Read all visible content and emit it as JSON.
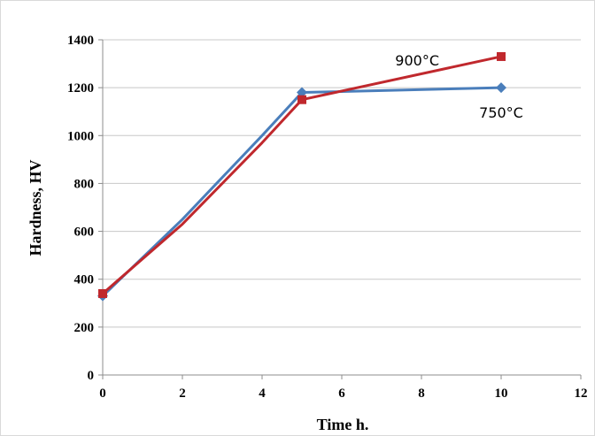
{
  "chart_data": {
    "type": "line",
    "xlabel": "Time h.",
    "ylabel": "Hardness, HV",
    "xlim": [
      0,
      12
    ],
    "ylim": [
      0,
      1400
    ],
    "xticks": [
      0,
      2,
      4,
      6,
      8,
      10,
      12
    ],
    "yticks": [
      0,
      200,
      400,
      600,
      800,
      1000,
      1200,
      1400
    ],
    "grid": "horizontal",
    "series": [
      {
        "name": "750°C",
        "color": "#4a7ebb",
        "marker": "diamond",
        "x": [
          0,
          2,
          4,
          5,
          10
        ],
        "y": [
          330,
          650,
          1000,
          1180,
          1200
        ]
      },
      {
        "name": "900°C",
        "color": "#c0282d",
        "marker": "square",
        "x": [
          0,
          2,
          4,
          5,
          10
        ],
        "y": [
          340,
          630,
          970,
          1150,
          1330
        ]
      }
    ]
  }
}
